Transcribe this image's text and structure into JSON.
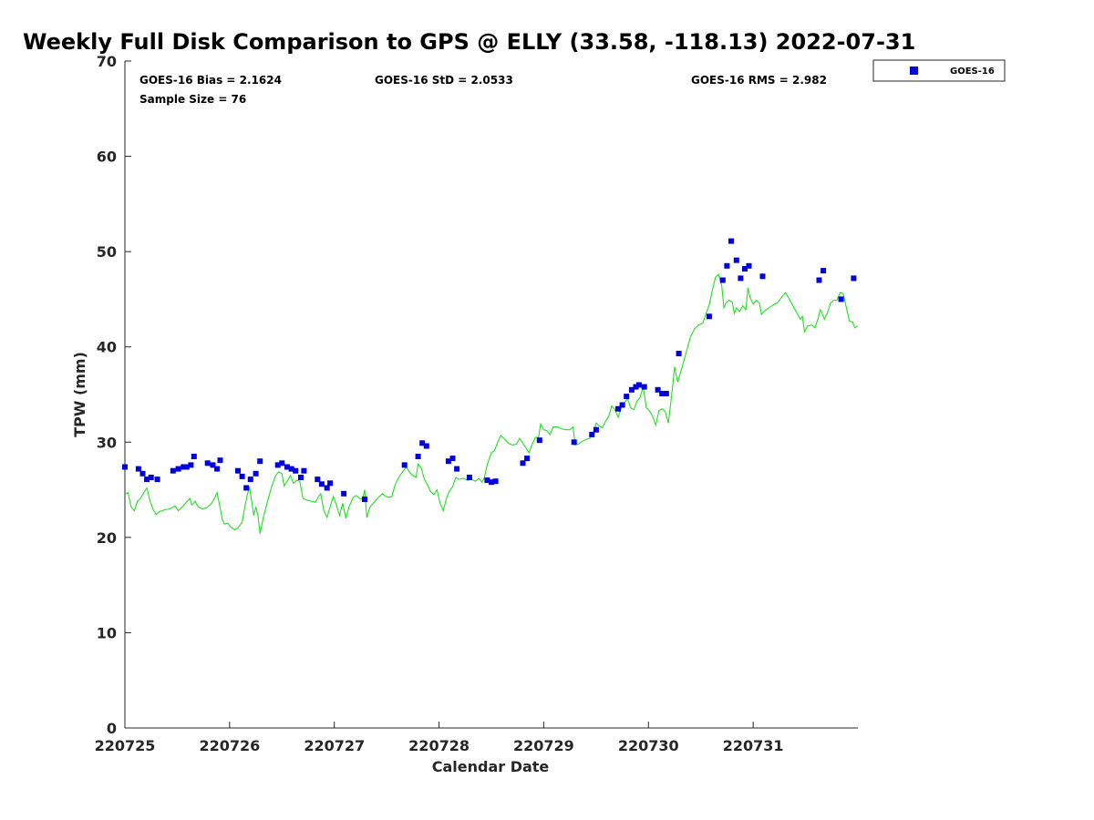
{
  "chart_data": {
    "type": "scatter",
    "title": "Weekly Full Disk Comparison to GPS @ ELLY (33.58, -118.13) 2022-07-31",
    "xlabel": "Calendar Date",
    "ylabel": "TPW (mm)",
    "xlim": [
      0,
      7
    ],
    "ylim": [
      0,
      70
    ],
    "x_ticks": [
      0,
      1,
      2,
      3,
      4,
      5,
      6
    ],
    "x_tick_labels": [
      "220725",
      "220726",
      "220727",
      "220728",
      "220729",
      "220730",
      "220731"
    ],
    "y_ticks": [
      0,
      10,
      20,
      30,
      40,
      50,
      60,
      70
    ],
    "y_tick_labels": [
      "0",
      "10",
      "20",
      "30",
      "40",
      "50",
      "60",
      "70"
    ],
    "grid": false,
    "legend_position": "top-right-outside",
    "stats": {
      "bias": "GOES-16 Bias = 2.1624",
      "std": "GOES-16 StD = 2.0533",
      "rms": "GOES-16 RMS = 2.982",
      "sample": "Sample Size = 76"
    },
    "series": [
      {
        "name": "GOES-16",
        "kind": "scatter",
        "color": "#0000dd",
        "points": [
          [
            0.0,
            27.4
          ],
          [
            0.13,
            27.2
          ],
          [
            0.17,
            26.7
          ],
          [
            0.21,
            26.1
          ],
          [
            0.25,
            26.3
          ],
          [
            0.31,
            26.1
          ],
          [
            0.46,
            27.0
          ],
          [
            0.51,
            27.2
          ],
          [
            0.56,
            27.4
          ],
          [
            0.59,
            27.4
          ],
          [
            0.63,
            27.6
          ],
          [
            0.66,
            28.5
          ],
          [
            0.79,
            27.8
          ],
          [
            0.84,
            27.6
          ],
          [
            0.88,
            27.2
          ],
          [
            0.91,
            28.1
          ],
          [
            1.08,
            27.0
          ],
          [
            1.12,
            26.4
          ],
          [
            1.16,
            25.2
          ],
          [
            1.2,
            26.1
          ],
          [
            1.25,
            26.7
          ],
          [
            1.29,
            28.0
          ],
          [
            1.46,
            27.6
          ],
          [
            1.5,
            27.8
          ],
          [
            1.55,
            27.4
          ],
          [
            1.59,
            27.2
          ],
          [
            1.63,
            27.0
          ],
          [
            1.68,
            26.3
          ],
          [
            1.71,
            27.0
          ],
          [
            1.84,
            26.1
          ],
          [
            1.88,
            25.6
          ],
          [
            1.93,
            25.2
          ],
          [
            1.96,
            25.7
          ],
          [
            2.09,
            24.6
          ],
          [
            2.29,
            24.0
          ],
          [
            2.67,
            27.6
          ],
          [
            2.8,
            28.5
          ],
          [
            2.84,
            29.9
          ],
          [
            2.88,
            29.6
          ],
          [
            3.09,
            28.0
          ],
          [
            3.13,
            28.3
          ],
          [
            3.17,
            27.2
          ],
          [
            3.29,
            26.3
          ],
          [
            3.46,
            26.0
          ],
          [
            3.5,
            25.8
          ],
          [
            3.54,
            25.9
          ],
          [
            3.8,
            27.8
          ],
          [
            3.84,
            28.3
          ],
          [
            3.96,
            30.2
          ],
          [
            4.29,
            30.0
          ],
          [
            4.46,
            30.8
          ],
          [
            4.5,
            31.3
          ],
          [
            4.71,
            33.5
          ],
          [
            4.75,
            33.9
          ],
          [
            4.79,
            34.8
          ],
          [
            4.84,
            35.5
          ],
          [
            4.88,
            35.8
          ],
          [
            4.91,
            36.0
          ],
          [
            4.96,
            35.8
          ],
          [
            5.09,
            35.5
          ],
          [
            5.13,
            35.1
          ],
          [
            5.17,
            35.1
          ],
          [
            5.29,
            39.3
          ],
          [
            5.58,
            43.2
          ],
          [
            5.71,
            47.0
          ],
          [
            5.75,
            48.5
          ],
          [
            5.79,
            51.1
          ],
          [
            5.84,
            49.1
          ],
          [
            5.88,
            47.2
          ],
          [
            5.92,
            48.2
          ],
          [
            5.96,
            48.5
          ],
          [
            6.09,
            47.4
          ],
          [
            6.63,
            47.0
          ],
          [
            6.67,
            48.0
          ],
          [
            6.84,
            45.0
          ],
          [
            6.96,
            47.2
          ]
        ]
      },
      {
        "name": "",
        "kind": "line",
        "color": "#22e022",
        "points": [
          [
            0.0,
            24.5
          ],
          [
            0.03,
            24.7
          ],
          [
            0.06,
            23.2
          ],
          [
            0.09,
            22.8
          ],
          [
            0.12,
            23.8
          ],
          [
            0.15,
            24.1
          ],
          [
            0.18,
            24.7
          ],
          [
            0.21,
            25.2
          ],
          [
            0.24,
            23.8
          ],
          [
            0.27,
            22.9
          ],
          [
            0.3,
            22.4
          ],
          [
            0.33,
            22.7
          ],
          [
            0.38,
            22.9
          ],
          [
            0.43,
            23.0
          ],
          [
            0.48,
            23.3
          ],
          [
            0.51,
            22.8
          ],
          [
            0.54,
            23.1
          ],
          [
            0.58,
            23.6
          ],
          [
            0.62,
            24.1
          ],
          [
            0.64,
            23.4
          ],
          [
            0.67,
            23.8
          ],
          [
            0.7,
            23.2
          ],
          [
            0.74,
            23.0
          ],
          [
            0.78,
            23.1
          ],
          [
            0.83,
            23.6
          ],
          [
            0.86,
            24.2
          ],
          [
            0.88,
            24.7
          ],
          [
            0.9,
            23.6
          ],
          [
            0.93,
            21.9
          ],
          [
            0.95,
            21.4
          ],
          [
            0.98,
            21.5
          ],
          [
            1.01,
            21.1
          ],
          [
            1.05,
            20.8
          ],
          [
            1.08,
            21.0
          ],
          [
            1.12,
            21.6
          ],
          [
            1.15,
            23.5
          ],
          [
            1.17,
            24.5
          ],
          [
            1.19,
            25.3
          ],
          [
            1.21,
            23.8
          ],
          [
            1.23,
            22.3
          ],
          [
            1.25,
            23.2
          ],
          [
            1.27,
            22.3
          ],
          [
            1.29,
            20.4
          ],
          [
            1.32,
            22.0
          ],
          [
            1.36,
            23.7
          ],
          [
            1.4,
            25.3
          ],
          [
            1.44,
            26.5
          ],
          [
            1.47,
            26.9
          ],
          [
            1.5,
            26.7
          ],
          [
            1.52,
            25.4
          ],
          [
            1.55,
            25.9
          ],
          [
            1.58,
            26.5
          ],
          [
            1.61,
            25.7
          ],
          [
            1.64,
            26.0
          ],
          [
            1.67,
            25.9
          ],
          [
            1.7,
            24.1
          ],
          [
            1.74,
            23.9
          ],
          [
            1.78,
            23.8
          ],
          [
            1.82,
            23.7
          ],
          [
            1.85,
            24.3
          ],
          [
            1.87,
            24.6
          ],
          [
            1.9,
            22.8
          ],
          [
            1.93,
            22.1
          ],
          [
            1.96,
            23.2
          ],
          [
            1.99,
            24.3
          ],
          [
            2.02,
            23.4
          ],
          [
            2.05,
            22.3
          ],
          [
            2.08,
            23.6
          ],
          [
            2.11,
            22.0
          ],
          [
            2.14,
            23.2
          ],
          [
            2.18,
            24.2
          ],
          [
            2.21,
            24.4
          ],
          [
            2.24,
            24.1
          ],
          [
            2.27,
            24.0
          ],
          [
            2.29,
            25.0
          ],
          [
            2.31,
            22.1
          ],
          [
            2.34,
            23.2
          ],
          [
            2.38,
            23.7
          ],
          [
            2.42,
            24.2
          ],
          [
            2.46,
            24.6
          ],
          [
            2.49,
            24.3
          ],
          [
            2.52,
            24.2
          ],
          [
            2.55,
            24.3
          ],
          [
            2.58,
            25.5
          ],
          [
            2.62,
            26.4
          ],
          [
            2.66,
            27.0
          ],
          [
            2.69,
            27.4
          ],
          [
            2.72,
            26.8
          ],
          [
            2.75,
            26.5
          ],
          [
            2.78,
            26.3
          ],
          [
            2.8,
            27.7
          ],
          [
            2.83,
            27.3
          ],
          [
            2.86,
            26.1
          ],
          [
            2.89,
            25.5
          ],
          [
            2.92,
            24.8
          ],
          [
            2.95,
            24.5
          ],
          [
            2.98,
            25.0
          ],
          [
            3.01,
            23.6
          ],
          [
            3.04,
            22.8
          ],
          [
            3.07,
            24.1
          ],
          [
            3.1,
            24.9
          ],
          [
            3.13,
            25.3
          ],
          [
            3.16,
            26.3
          ],
          [
            3.19,
            26.1
          ],
          [
            3.23,
            26.2
          ],
          [
            3.27,
            26.0
          ],
          [
            3.31,
            26.1
          ],
          [
            3.35,
            25.9
          ],
          [
            3.38,
            26.2
          ],
          [
            3.41,
            25.8
          ],
          [
            3.43,
            26.2
          ],
          [
            3.46,
            27.6
          ],
          [
            3.48,
            28.3
          ],
          [
            3.5,
            28.9
          ],
          [
            3.53,
            29.1
          ],
          [
            3.56,
            30.0
          ],
          [
            3.59,
            30.7
          ],
          [
            3.62,
            30.4
          ],
          [
            3.66,
            29.9
          ],
          [
            3.7,
            29.7
          ],
          [
            3.74,
            29.8
          ],
          [
            3.77,
            30.4
          ],
          [
            3.8,
            29.9
          ],
          [
            3.83,
            29.4
          ],
          [
            3.86,
            28.9
          ],
          [
            3.89,
            29.8
          ],
          [
            3.92,
            30.5
          ],
          [
            3.95,
            30.5
          ],
          [
            3.97,
            31.9
          ],
          [
            4.0,
            31.3
          ],
          [
            4.03,
            31.2
          ],
          [
            4.06,
            30.8
          ],
          [
            4.09,
            31.6
          ],
          [
            4.13,
            31.6
          ],
          [
            4.17,
            31.4
          ],
          [
            4.21,
            31.3
          ],
          [
            4.25,
            31.3
          ],
          [
            4.28,
            31.6
          ],
          [
            4.3,
            29.7
          ],
          [
            4.33,
            29.8
          ],
          [
            4.37,
            30.1
          ],
          [
            4.41,
            30.3
          ],
          [
            4.44,
            30.4
          ],
          [
            4.47,
            30.9
          ],
          [
            4.5,
            32.0
          ],
          [
            4.53,
            31.7
          ],
          [
            4.56,
            31.5
          ],
          [
            4.59,
            32.2
          ],
          [
            4.62,
            32.7
          ],
          [
            4.65,
            33.8
          ],
          [
            4.68,
            33.4
          ],
          [
            4.71,
            32.6
          ],
          [
            4.74,
            33.6
          ],
          [
            4.77,
            34.1
          ],
          [
            4.8,
            34.6
          ],
          [
            4.83,
            33.6
          ],
          [
            4.86,
            33.4
          ],
          [
            4.89,
            34.3
          ],
          [
            4.92,
            34.7
          ],
          [
            4.95,
            35.8
          ],
          [
            4.98,
            33.6
          ],
          [
            5.01,
            33.3
          ],
          [
            5.04,
            32.7
          ],
          [
            5.07,
            31.8
          ],
          [
            5.1,
            33.3
          ],
          [
            5.13,
            33.5
          ],
          [
            5.16,
            33.2
          ],
          [
            5.19,
            32.0
          ],
          [
            5.22,
            34.8
          ],
          [
            5.25,
            37.9
          ],
          [
            5.28,
            36.3
          ],
          [
            5.32,
            37.8
          ],
          [
            5.36,
            39.4
          ],
          [
            5.4,
            41.0
          ],
          [
            5.44,
            41.9
          ],
          [
            5.48,
            42.3
          ],
          [
            5.52,
            42.5
          ],
          [
            5.55,
            43.5
          ],
          [
            5.58,
            44.4
          ],
          [
            5.61,
            45.9
          ],
          [
            5.64,
            47.3
          ],
          [
            5.67,
            47.6
          ],
          [
            5.7,
            46.4
          ],
          [
            5.72,
            44.1
          ],
          [
            5.74,
            44.6
          ],
          [
            5.77,
            44.9
          ],
          [
            5.8,
            44.7
          ],
          [
            5.82,
            43.5
          ],
          [
            5.84,
            44.1
          ],
          [
            5.87,
            43.7
          ],
          [
            5.9,
            44.3
          ],
          [
            5.93,
            43.9
          ],
          [
            5.95,
            46.2
          ],
          [
            5.97,
            45.2
          ],
          [
            6.0,
            44.5
          ],
          [
            6.03,
            44.9
          ],
          [
            6.06,
            44.6
          ],
          [
            6.08,
            43.4
          ],
          [
            6.11,
            43.8
          ],
          [
            6.15,
            44.1
          ],
          [
            6.19,
            44.4
          ],
          [
            6.23,
            44.6
          ],
          [
            6.27,
            45.2
          ],
          [
            6.31,
            45.7
          ],
          [
            6.34,
            45.1
          ],
          [
            6.38,
            44.3
          ],
          [
            6.42,
            43.5
          ],
          [
            6.45,
            42.9
          ],
          [
            6.47,
            43.2
          ],
          [
            6.49,
            41.6
          ],
          [
            6.52,
            42.2
          ],
          [
            6.56,
            42.3
          ],
          [
            6.59,
            42.0
          ],
          [
            6.62,
            43.0
          ],
          [
            6.64,
            43.9
          ],
          [
            6.66,
            43.5
          ],
          [
            6.68,
            42.9
          ],
          [
            6.71,
            43.6
          ],
          [
            6.74,
            44.6
          ],
          [
            6.77,
            44.9
          ],
          [
            6.8,
            44.9
          ],
          [
            6.83,
            45.7
          ],
          [
            6.86,
            45.6
          ],
          [
            6.89,
            44.1
          ],
          [
            6.92,
            42.7
          ],
          [
            6.95,
            42.6
          ],
          [
            6.97,
            42.0
          ],
          [
            7.0,
            42.2
          ]
        ]
      }
    ]
  }
}
